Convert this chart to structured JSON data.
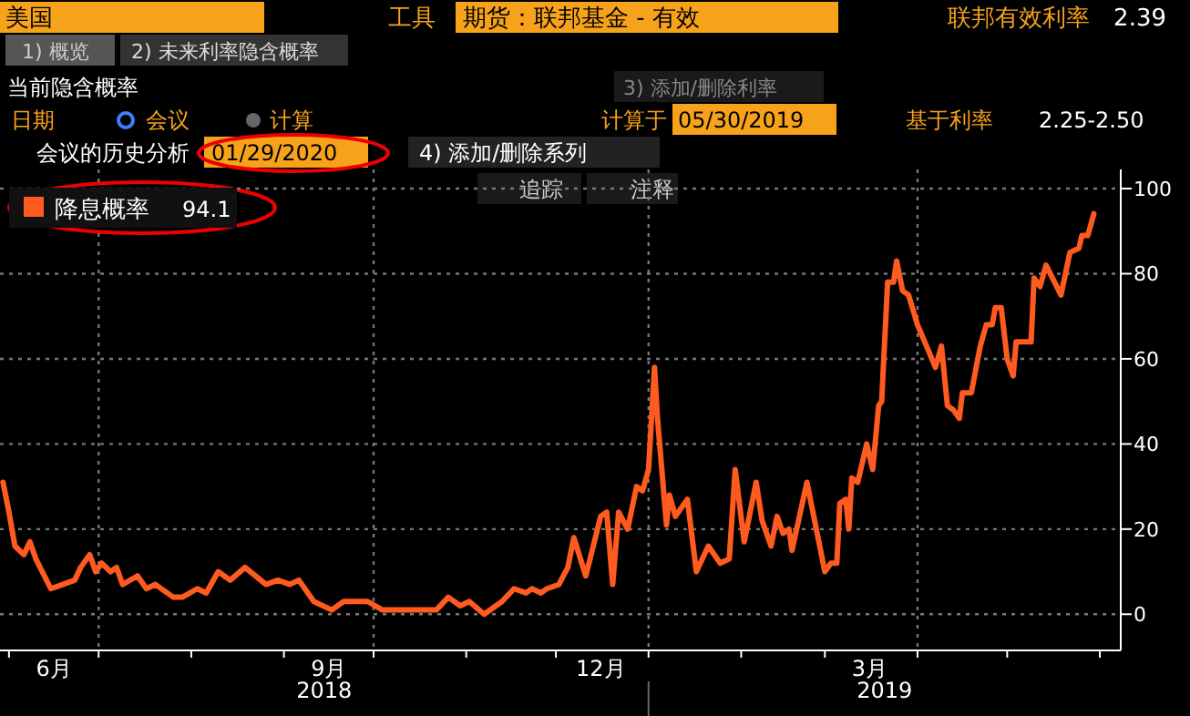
{
  "chart_data": {
    "type": "line",
    "title": "当前隐含概率",
    "x": [
      "2018-05-30",
      "2018-06-01",
      "2018-06-03",
      "2018-06-06",
      "2018-06-08",
      "2018-06-10",
      "2018-06-15",
      "2018-06-19",
      "2018-06-23",
      "2018-06-25",
      "2018-06-28",
      "2018-06-30",
      "2018-07-02",
      "2018-07-05",
      "2018-07-07",
      "2018-07-09",
      "2018-07-14",
      "2018-07-17",
      "2018-07-20",
      "2018-07-26",
      "2018-07-29",
      "2018-08-03",
      "2018-08-06",
      "2018-08-10",
      "2018-08-14",
      "2018-08-19",
      "2018-08-26",
      "2018-08-30",
      "2018-09-03",
      "2018-09-06",
      "2018-09-11",
      "2018-09-17",
      "2018-09-21",
      "2018-09-29",
      "2018-10-04",
      "2018-10-10",
      "2018-10-18",
      "2018-10-22",
      "2018-10-26",
      "2018-10-30",
      "2018-11-02",
      "2018-11-07",
      "2018-11-13",
      "2018-11-17",
      "2018-11-21",
      "2018-11-23",
      "2018-11-26",
      "2018-11-28",
      "2018-12-02",
      "2018-12-05",
      "2018-12-07",
      "2018-12-11",
      "2018-12-16",
      "2018-12-18",
      "2018-12-20",
      "2018-12-22",
      "2018-12-25",
      "2018-12-28",
      "2018-12-30",
      "2019-01-01",
      "2019-01-03",
      "2019-01-04",
      "2019-01-07",
      "2019-01-08",
      "2019-01-10",
      "2019-01-14",
      "2019-01-17",
      "2019-01-21",
      "2019-01-25",
      "2019-01-28",
      "2019-01-30",
      "2019-02-02",
      "2019-02-06",
      "2019-02-08",
      "2019-02-11",
      "2019-02-13",
      "2019-02-15",
      "2019-02-17",
      "2019-02-18",
      "2019-02-23",
      "2019-03-01",
      "2019-03-03",
      "2019-03-05",
      "2019-03-06",
      "2019-03-08",
      "2019-03-09",
      "2019-03-10",
      "2019-03-12",
      "2019-03-15",
      "2019-03-17",
      "2019-03-19",
      "2019-03-20",
      "2019-03-22",
      "2019-03-24",
      "2019-03-25",
      "2019-03-27",
      "2019-03-29",
      "2019-04-01",
      "2019-04-04",
      "2019-04-07",
      "2019-04-09",
      "2019-04-11",
      "2019-04-13",
      "2019-04-15",
      "2019-04-16",
      "2019-04-19",
      "2019-04-22",
      "2019-04-24",
      "2019-04-26",
      "2019-04-27",
      "2019-04-29",
      "2019-05-01",
      "2019-05-03",
      "2019-05-04",
      "2019-05-07",
      "2019-05-09",
      "2019-05-10",
      "2019-05-12",
      "2019-05-14",
      "2019-05-19",
      "2019-05-22",
      "2019-05-25",
      "2019-05-26",
      "2019-05-28",
      "2019-05-30"
    ],
    "series": [
      {
        "name": "降息概率",
        "color": "#ff5a1f",
        "values": [
          31,
          24,
          16,
          14,
          17,
          13,
          6,
          7,
          8,
          11,
          14,
          10,
          12,
          10,
          11,
          7,
          9,
          6,
          7,
          4,
          4,
          6,
          5,
          10,
          8,
          11,
          7,
          8,
          7,
          8,
          3,
          1,
          3,
          3,
          1,
          1,
          1,
          1,
          4,
          2,
          3,
          0,
          3,
          6,
          5,
          6,
          5,
          6,
          7,
          11,
          18,
          9,
          23,
          24,
          7,
          24,
          20,
          30,
          29,
          34,
          58,
          46,
          21,
          28,
          23,
          27,
          10,
          16,
          12,
          13,
          34,
          17,
          31,
          22,
          16,
          23,
          19,
          20,
          15,
          31,
          10,
          12,
          12,
          26,
          27,
          20,
          32,
          31,
          40,
          34,
          49,
          50,
          78,
          78,
          83,
          76,
          75,
          68,
          63,
          58,
          63,
          49,
          48,
          46,
          52,
          52,
          63,
          68,
          68,
          72,
          72,
          60,
          56,
          64,
          64,
          64,
          79,
          77,
          82,
          75,
          85,
          86,
          89,
          89,
          94.1
        ]
      }
    ],
    "xlim": [
      "2018-05-29",
      "2019-06-08"
    ],
    "xticks": [
      {
        "value": "2018-06-01",
        "label": null
      },
      {
        "value": "2018-06-16",
        "label": "6月"
      },
      {
        "value": "2018-07-01",
        "label": null
      },
      {
        "value": "2018-08-01",
        "label": null
      },
      {
        "value": "2018-09-01",
        "label": null
      },
      {
        "value": "2018-09-16",
        "label": "9月"
      },
      {
        "value": "2018-10-01",
        "label": null
      },
      {
        "value": "2018-11-01",
        "label": null
      },
      {
        "value": "2018-12-01",
        "label": null
      },
      {
        "value": "2018-12-16",
        "label": "12月"
      },
      {
        "value": "2019-01-01",
        "label": null
      },
      {
        "value": "2019-02-01",
        "label": null
      },
      {
        "value": "2019-03-01",
        "label": null
      },
      {
        "value": "2019-03-16",
        "label": "3月"
      },
      {
        "value": "2019-04-01",
        "label": null
      },
      {
        "value": "2019-05-01",
        "label": null
      },
      {
        "value": "2019-06-01",
        "label": null
      }
    ],
    "ylim": [
      -8.5,
      104.5
    ],
    "yticks": [
      0,
      20,
      40,
      60,
      80,
      100
    ],
    "grid": true,
    "legend": "top left",
    "annotations": [
      "美国",
      "工具",
      "期货：联邦基金 - 有效",
      "联邦有效利率",
      "2.39",
      "1) 概览",
      "2) 未来利率隐含概率",
      "3) 添加/删除利率",
      "日期",
      "会议",
      "计算",
      "计算于",
      "05/30/2019",
      "基于利率",
      "2.25-2.50",
      "会议的历史分析",
      "01/29/2020",
      "4) 添加/删除系列",
      "追踪",
      "注释",
      "2018",
      "2019",
      "94.1"
    ]
  }
}
